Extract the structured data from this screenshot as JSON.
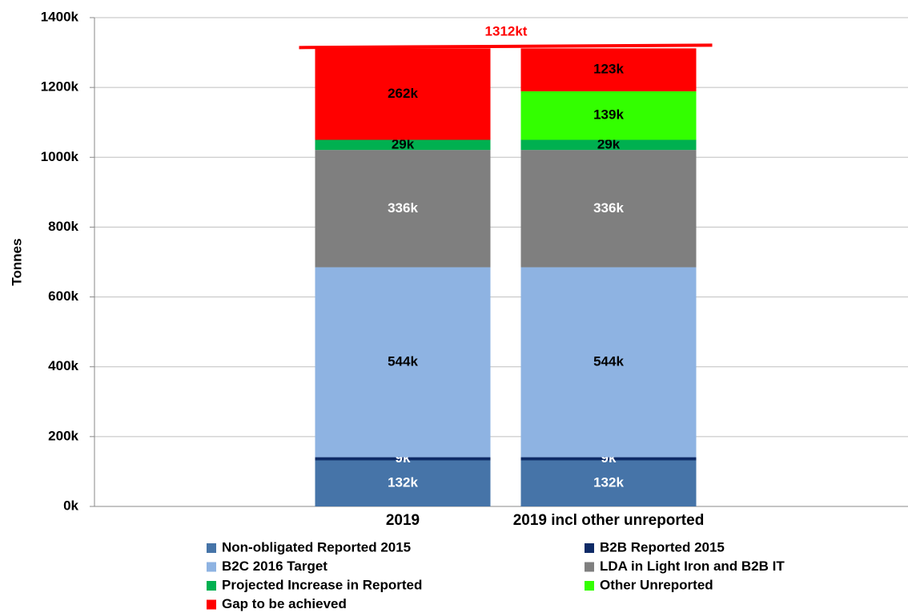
{
  "chart_data": {
    "type": "stacked_bar",
    "annotation": "1312kt",
    "annotation_color": "#ff0000",
    "ylabel": "Tonnes",
    "categories": [
      "2019",
      "2019 incl other unreported"
    ],
    "ylim": [
      0,
      1400000
    ],
    "yticks": [
      {
        "value": 0,
        "label": "0k"
      },
      {
        "value": 200000,
        "label": "200k"
      },
      {
        "value": 400000,
        "label": "400k"
      },
      {
        "value": 600000,
        "label": "600k"
      },
      {
        "value": 800000,
        "label": "800k"
      },
      {
        "value": 1000000,
        "label": "1000k"
      },
      {
        "value": 1200000,
        "label": "1200k"
      },
      {
        "value": 1400000,
        "label": "1400k"
      }
    ],
    "grid": true,
    "series": [
      {
        "name": "Non-obligated Reported 2015",
        "color": "#4674a8",
        "label_color": "#ffffff",
        "values": [
          132000,
          132000
        ],
        "value_labels": [
          "132k",
          "132k"
        ]
      },
      {
        "name": "B2B Reported 2015",
        "color": "#0e2a66",
        "label_color": "#ffffff",
        "values": [
          9000,
          9000
        ],
        "value_labels": [
          "9k",
          "9k"
        ]
      },
      {
        "name": "B2C 2016 Target",
        "color": "#8eb3e2",
        "label_color": "#000000",
        "values": [
          544000,
          544000
        ],
        "value_labels": [
          "544k",
          "544k"
        ]
      },
      {
        "name": "LDA in Light Iron and B2B IT",
        "color": "#7f7f7f",
        "label_color": "#ffffff",
        "values": [
          336000,
          336000
        ],
        "value_labels": [
          "336k",
          "336k"
        ]
      },
      {
        "name": "Projected Increase in Reported",
        "color": "#00b050",
        "label_color": "#000000",
        "values": [
          29000,
          29000
        ],
        "value_labels": [
          "29k",
          "29k"
        ]
      },
      {
        "name": "Other Unreported",
        "color": "#33ff00",
        "label_color": "#000000",
        "values": [
          null,
          139000
        ],
        "value_labels": [
          null,
          "139k"
        ]
      },
      {
        "name": "Gap to be achieved",
        "color": "#ff0000",
        "label_color": "#000000",
        "values": [
          262000,
          123000
        ],
        "value_labels": [
          "262k",
          "123k"
        ]
      }
    ]
  }
}
